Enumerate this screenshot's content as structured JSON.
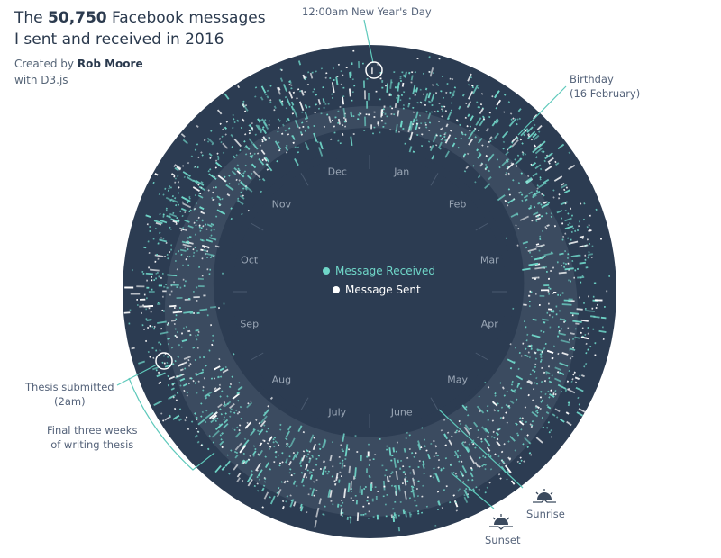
{
  "header": {
    "title_prefix": "The ",
    "title_count": "50,750",
    "title_suffix": " Facebook messages",
    "title_line2": "I sent and received in 2016",
    "credit_prefix": "Created by ",
    "credit_author": "Rob Moore",
    "credit_tool": "with D3.js"
  },
  "legend": {
    "received_label": "Message Received",
    "sent_label": "Message Sent"
  },
  "annotations": {
    "new_year": "12:00am New Year's Day",
    "birthday_line1": "Birthday",
    "birthday_line2": "(16 February)",
    "thesis_line1": "Thesis submitted",
    "thesis_line2": "(2am)",
    "final_line1": "Final three weeks",
    "final_line2": "of writing thesis",
    "sunrise": "Sunrise",
    "sunset": "Sunset"
  },
  "colors": {
    "background": "#ffffff",
    "disc": "#2c3c52",
    "band": "#3b4b60",
    "received": "#6fd6c8",
    "sent": "#ffffff",
    "month_label": "#9aa6b5",
    "annotation_line": "#5ec9bb",
    "text": "#2b3a4e"
  },
  "chart_data": {
    "type": "scatter",
    "subtype": "radial",
    "title": "The 50,750 Facebook messages I sent and received in 2016",
    "angular_axis": "day of year (clockwise from top, Jan at top-right)",
    "radial_axis": "time of day (inner = 00:00, outer = 24:00)",
    "months": [
      "Jan",
      "Feb",
      "Mar",
      "Apr",
      "May",
      "June",
      "July",
      "Aug",
      "Sep",
      "Oct",
      "Nov",
      "Dec"
    ],
    "series": [
      {
        "name": "Message Received",
        "color": "#6fd6c8"
      },
      {
        "name": "Message Sent",
        "color": "#ffffff"
      }
    ],
    "total_messages": 50750,
    "annotations": [
      {
        "label": "12:00am New Year's Day",
        "angle_deg": 0
      },
      {
        "label": "Birthday (16 February)",
        "angle_deg": 45
      },
      {
        "label": "Thesis submitted (2am)",
        "angle_deg": 250
      },
      {
        "label": "Final three weeks of writing thesis",
        "angle_span_deg": [
          228,
          250
        ]
      },
      {
        "label": "Sunrise",
        "note": "inner edge of lighter band"
      },
      {
        "label": "Sunset",
        "note": "outer edge of lighter band"
      }
    ],
    "legend_position": "center"
  }
}
